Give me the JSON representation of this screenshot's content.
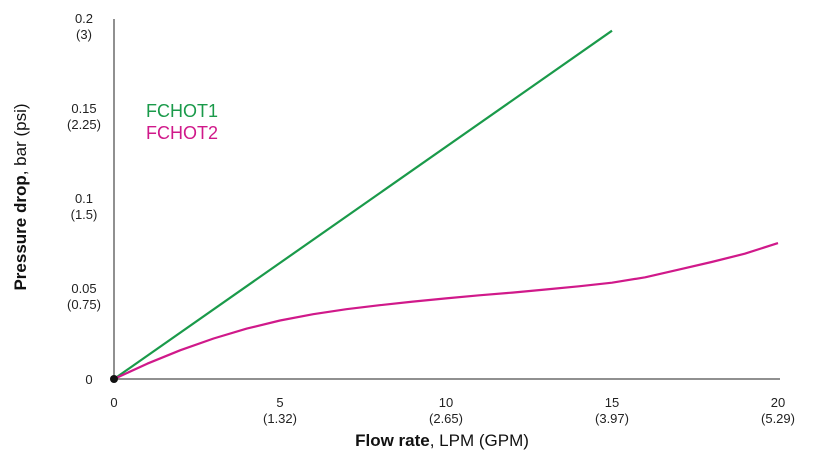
{
  "chart_data": {
    "type": "line",
    "xlabel_bold": "Flow rate",
    "xlabel_rest": ", LPM (GPM)",
    "ylabel_bold": "Pressure drop",
    "ylabel_rest": ", bar (psi)",
    "xlim": [
      0,
      20
    ],
    "ylim": [
      0,
      0.2
    ],
    "x_ticks": [
      {
        "value": 0,
        "label": "0",
        "sub": ""
      },
      {
        "value": 5,
        "label": "5",
        "sub": "(1.32)"
      },
      {
        "value": 10,
        "label": "10",
        "sub": "(2.65)"
      },
      {
        "value": 15,
        "label": "15",
        "sub": "(3.97)"
      },
      {
        "value": 20,
        "label": "20",
        "sub": "(5.29)"
      }
    ],
    "y_ticks": [
      {
        "value": 0,
        "label": "0",
        "sub": ""
      },
      {
        "value": 0.05,
        "label": "0.05",
        "sub": "(0.75)"
      },
      {
        "value": 0.1,
        "label": "0.1",
        "sub": "(1.5)"
      },
      {
        "value": 0.15,
        "label": "0.15",
        "sub": "(2.25)"
      },
      {
        "value": 0.2,
        "label": "0.2",
        "sub": "(3)"
      }
    ],
    "series": [
      {
        "name": "FCHOT1",
        "color": "#1a9a4a",
        "x": [
          0,
          15
        ],
        "y": [
          0,
          0.1935
        ]
      },
      {
        "name": "FCHOT2",
        "color": "#d0198a",
        "x": [
          0,
          1,
          2,
          3,
          4,
          5,
          6,
          7,
          8,
          9,
          10,
          11,
          12,
          13,
          14,
          15,
          16,
          17,
          18,
          19,
          20
        ],
        "y": [
          0,
          0.0085,
          0.016,
          0.0225,
          0.028,
          0.0325,
          0.036,
          0.0388,
          0.041,
          0.043,
          0.0448,
          0.0465,
          0.048,
          0.0497,
          0.0515,
          0.0535,
          0.0565,
          0.0607,
          0.065,
          0.0696,
          0.0755
        ]
      }
    ],
    "origin_marker": {
      "x": 0,
      "y": 0,
      "color": "#111111"
    },
    "grid": false,
    "legend_position": "top-left"
  }
}
